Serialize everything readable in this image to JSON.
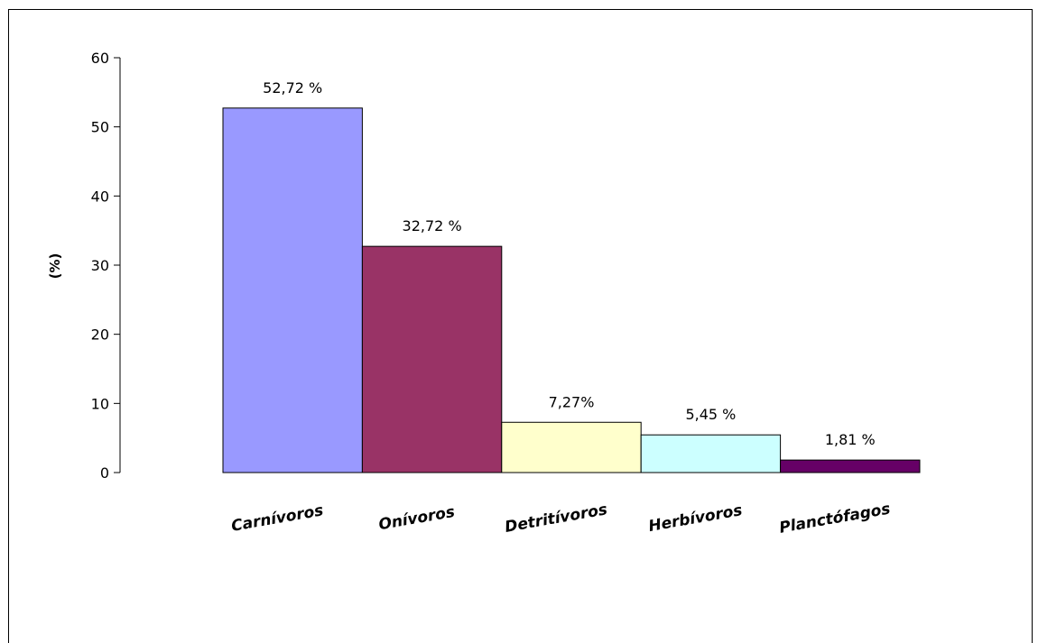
{
  "chart_data": {
    "type": "bar",
    "title": "",
    "xlabel": "",
    "ylabel": "(%)",
    "ylim": [
      0,
      60
    ],
    "yticks": [
      "0",
      "10",
      "20",
      "30",
      "40",
      "50",
      "60"
    ],
    "categories": [
      "Carnívoros",
      "Onívoros",
      "Detritívoros",
      "Herbívoros",
      "Planctófagos"
    ],
    "values": [
      52.72,
      32.72,
      7.27,
      5.45,
      1.81
    ],
    "data_labels": [
      "52,72 %",
      "32,72 %",
      "7,27%",
      "5,45 %",
      "1,81 %"
    ],
    "colors": [
      "#9999FF",
      "#993366",
      "#FFFFCC",
      "#CCFFFF",
      "#660066"
    ],
    "grid": false,
    "legend": "none"
  }
}
